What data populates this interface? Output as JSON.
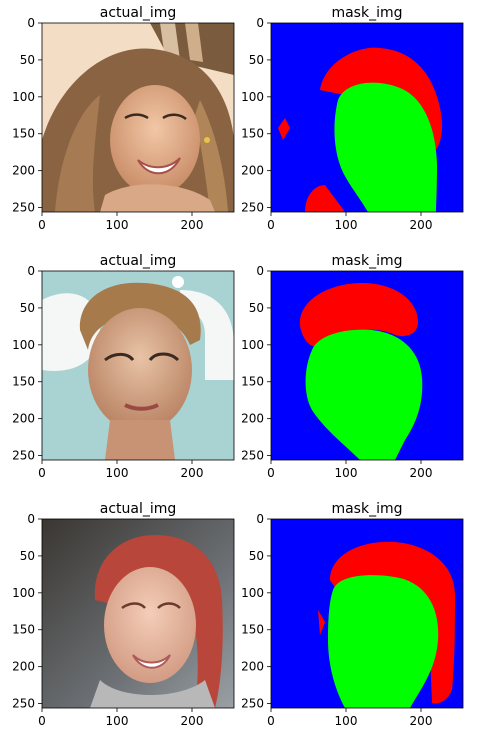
{
  "figure": {
    "background": "#ffffff",
    "mask_colors": {
      "background": "#0000ff",
      "face": "#00ff00",
      "hair": "#ff0000"
    }
  },
  "chart_data": [
    {
      "type": "image",
      "title": "actual_img",
      "xlim": [
        0,
        256
      ],
      "ylim": [
        256,
        0
      ],
      "x_ticks": [
        0,
        100,
        200
      ],
      "y_ticks": [
        0,
        50,
        100,
        150,
        200,
        250
      ],
      "image_desc": "face-photo-1"
    },
    {
      "type": "image",
      "title": "mask_img",
      "xlim": [
        0,
        256
      ],
      "ylim": [
        256,
        0
      ],
      "x_ticks": [
        0,
        100,
        200
      ],
      "y_ticks": [
        0,
        50,
        100,
        150,
        200,
        250
      ],
      "image_desc": "segmentation-mask-1"
    },
    {
      "type": "image",
      "title": "actual_img",
      "xlim": [
        0,
        256
      ],
      "ylim": [
        256,
        0
      ],
      "x_ticks": [
        0,
        100,
        200
      ],
      "y_ticks": [
        0,
        50,
        100,
        150,
        200,
        250
      ],
      "image_desc": "face-photo-2"
    },
    {
      "type": "image",
      "title": "mask_img",
      "xlim": [
        0,
        256
      ],
      "ylim": [
        256,
        0
      ],
      "x_ticks": [
        0,
        100,
        200
      ],
      "y_ticks": [
        0,
        50,
        100,
        150,
        200,
        250
      ],
      "image_desc": "segmentation-mask-2"
    },
    {
      "type": "image",
      "title": "actual_img",
      "xlim": [
        0,
        256
      ],
      "ylim": [
        256,
        0
      ],
      "x_ticks": [
        0,
        100,
        200
      ],
      "y_ticks": [
        0,
        50,
        100,
        150,
        200,
        250
      ],
      "image_desc": "face-photo-3"
    },
    {
      "type": "image",
      "title": "mask_img",
      "xlim": [
        0,
        256
      ],
      "ylim": [
        256,
        0
      ],
      "x_ticks": [
        0,
        100,
        200
      ],
      "y_ticks": [
        0,
        50,
        100,
        150,
        200,
        250
      ],
      "image_desc": "segmentation-mask-3"
    }
  ]
}
